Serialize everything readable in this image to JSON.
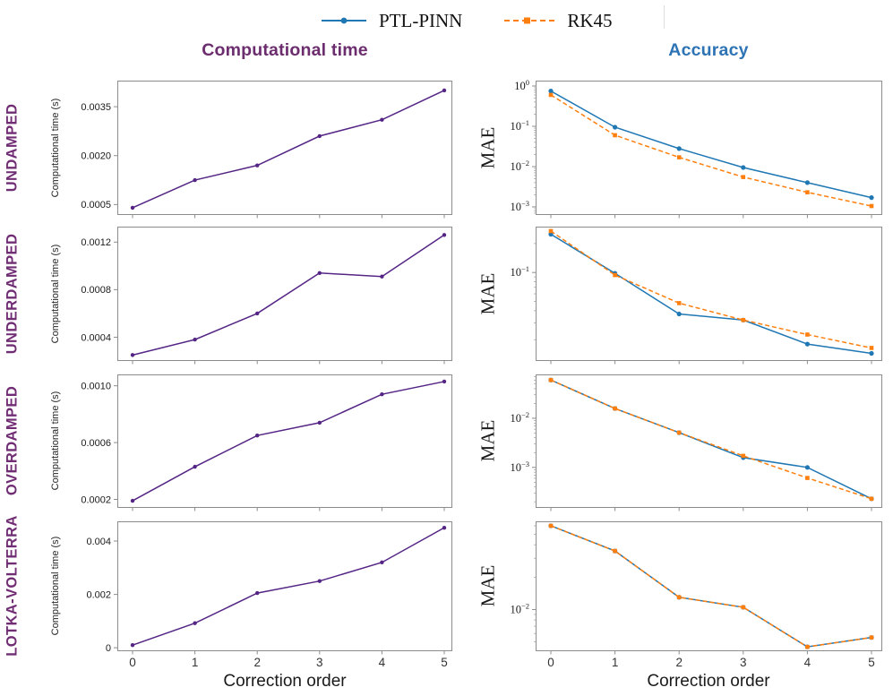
{
  "legend": {
    "items": [
      {
        "label": "PTL-PINN",
        "color": "#1f77b4",
        "dash": "solid",
        "marker": "circle"
      },
      {
        "label": "RK45",
        "color": "#ff7f0e",
        "dash": "dashed",
        "marker": "square"
      }
    ]
  },
  "columns": [
    {
      "title": "Computational time",
      "color": "#6b2d6e"
    },
    {
      "title": "Accuracy",
      "color": "#2e74b5"
    }
  ],
  "rows": [
    "UNDAMPED",
    "UNDERDAMPED",
    "OVERDAMPED",
    "LOTKA-VOLTERRA"
  ],
  "x_axis": {
    "label": "Correction order",
    "ticks": [
      "0",
      "1",
      "2",
      "3",
      "4",
      "5"
    ]
  },
  "colors": {
    "time_line": "#542585",
    "ptl_pinn": "#1f77b4",
    "rk45": "#ff7f0e",
    "row_label": "#702d73",
    "spine": "#8c8c8c",
    "tick_label": "#1a1a1a"
  },
  "chart_data": [
    {
      "id": "undamped-time",
      "row": "UNDAMPED",
      "column": "Computational time",
      "type": "line",
      "yscale": "linear",
      "ylabel": "Computational time (s)",
      "ylim": [
        0.00018,
        0.0043
      ],
      "x": [
        0,
        1,
        2,
        3,
        4,
        5
      ],
      "yticks": [
        {
          "v": 0.0005,
          "label": "0.0005"
        },
        {
          "v": 0.002,
          "label": "0.0020"
        },
        {
          "v": 0.0035,
          "label": "0.0035"
        }
      ],
      "series": [
        {
          "name": "time",
          "color": "#542585",
          "dash": "solid",
          "marker": "circle",
          "values": [
            0.0004,
            0.00125,
            0.0017,
            0.0026,
            0.0031,
            0.004
          ]
        }
      ]
    },
    {
      "id": "undamped-mae",
      "row": "UNDAMPED",
      "column": "Accuracy",
      "type": "line",
      "yscale": "log",
      "ylabel": "MAE",
      "ylim": [
        0.00063,
        1.36
      ],
      "x": [
        0,
        1,
        2,
        3,
        4,
        5
      ],
      "yticks": [
        {
          "v": 1,
          "exp": "0"
        },
        {
          "v": 0.1,
          "exp": "−1"
        },
        {
          "v": 0.01,
          "exp": "−2"
        },
        {
          "v": 0.001,
          "exp": "−3"
        }
      ],
      "series": [
        {
          "name": "PTL-PINN",
          "color": "#1f77b4",
          "dash": "solid",
          "marker": "circle",
          "values": [
            0.75,
            0.095,
            0.028,
            0.0095,
            0.004,
            0.0017
          ]
        },
        {
          "name": "RK45",
          "color": "#ff7f0e",
          "dash": "dashed",
          "marker": "square",
          "values": [
            0.6,
            0.06,
            0.017,
            0.0055,
            0.0023,
            0.00105
          ]
        }
      ]
    },
    {
      "id": "underdamped-time",
      "row": "UNDERDAMPED",
      "column": "Computational time",
      "type": "line",
      "yscale": "linear",
      "ylabel": "Computational time (s)",
      "ylim": [
        0.0002,
        0.00133
      ],
      "x": [
        0,
        1,
        2,
        3,
        4,
        5
      ],
      "yticks": [
        {
          "v": 0.0004,
          "label": "0.0004"
        },
        {
          "v": 0.0008,
          "label": "0.0008"
        },
        {
          "v": 0.0012,
          "label": "0.0012"
        }
      ],
      "series": [
        {
          "name": "time",
          "color": "#542585",
          "dash": "solid",
          "marker": "circle",
          "values": [
            0.00025,
            0.00038,
            0.0006,
            0.00094,
            0.00091,
            0.00126
          ]
        }
      ]
    },
    {
      "id": "underdamped-mae",
      "row": "UNDERDAMPED",
      "column": "Accuracy",
      "type": "line",
      "yscale": "log",
      "ylabel": "MAE",
      "ylim": [
        0.012,
        0.3
      ],
      "x": [
        0,
        1,
        2,
        3,
        4,
        5
      ],
      "yticks": [
        {
          "v": 0.1,
          "exp": "−1"
        }
      ],
      "series": [
        {
          "name": "PTL-PINN",
          "color": "#1f77b4",
          "dash": "solid",
          "marker": "circle",
          "values": [
            0.25,
            0.098,
            0.037,
            0.032,
            0.018,
            0.0144
          ]
        },
        {
          "name": "RK45",
          "color": "#ff7f0e",
          "dash": "dashed",
          "marker": "square",
          "values": [
            0.27,
            0.094,
            0.048,
            0.032,
            0.0226,
            0.0164
          ]
        }
      ]
    },
    {
      "id": "overdamped-time",
      "row": "OVERDAMPED",
      "column": "Computational time",
      "type": "line",
      "yscale": "linear",
      "ylabel": "Computational time (s)",
      "ylim": [
        0.00014,
        0.00108
      ],
      "x": [
        0,
        1,
        2,
        3,
        4,
        5
      ],
      "yticks": [
        {
          "v": 0.0002,
          "label": "0.0002"
        },
        {
          "v": 0.0006,
          "label": "0.0006"
        },
        {
          "v": 0.001,
          "label": "0.0010"
        }
      ],
      "series": [
        {
          "name": "time",
          "color": "#542585",
          "dash": "solid",
          "marker": "circle",
          "values": [
            0.00019,
            0.00043,
            0.00065,
            0.00074,
            0.00094,
            0.00103
          ]
        }
      ]
    },
    {
      "id": "overdamped-mae",
      "row": "OVERDAMPED",
      "column": "Accuracy",
      "type": "line",
      "yscale": "log",
      "ylabel": "MAE",
      "ylim": [
        0.00015,
        0.078
      ],
      "x": [
        0,
        1,
        2,
        3,
        4,
        5
      ],
      "yticks": [
        {
          "v": 0.01,
          "exp": "−2"
        },
        {
          "v": 0.001,
          "exp": "−3"
        }
      ],
      "series": [
        {
          "name": "PTL-PINN",
          "color": "#1f77b4",
          "dash": "solid",
          "marker": "circle",
          "values": [
            0.06,
            0.0158,
            0.0051,
            0.00158,
            0.001,
            0.00023
          ]
        },
        {
          "name": "RK45",
          "color": "#ff7f0e",
          "dash": "dashed",
          "marker": "square",
          "values": [
            0.06,
            0.0158,
            0.0051,
            0.00172,
            0.00061,
            0.00023
          ]
        }
      ]
    },
    {
      "id": "lotka-volterra-time",
      "row": "LOTKA-VOLTERRA",
      "column": "Computational time",
      "type": "line",
      "yscale": "linear",
      "ylabel": "Computational time (s)",
      "ylim": [
        -0.00013,
        0.00474
      ],
      "x": [
        0,
        1,
        2,
        3,
        4,
        5
      ],
      "yticks": [
        {
          "v": 0,
          "label": "0"
        },
        {
          "v": 0.002,
          "label": "0.002"
        },
        {
          "v": 0.004,
          "label": "0.004"
        }
      ],
      "series": [
        {
          "name": "time",
          "color": "#542585",
          "dash": "solid",
          "marker": "circle",
          "values": [
            0.0001,
            0.00092,
            0.00205,
            0.0025,
            0.0032,
            0.0045
          ]
        }
      ]
    },
    {
      "id": "lotka-volterra-mae",
      "row": "LOTKA-VOLTERRA",
      "column": "Accuracy",
      "type": "line",
      "yscale": "log",
      "ylabel": "MAE",
      "ylim": [
        0.0041,
        0.066
      ],
      "x": [
        0,
        1,
        2,
        3,
        4,
        5
      ],
      "yticks": [
        {
          "v": 0.01,
          "exp": "−2"
        }
      ],
      "series": [
        {
          "name": "PTL-PINN",
          "color": "#1f77b4",
          "dash": "solid",
          "marker": "circle",
          "values": [
            0.06,
            0.035,
            0.013,
            0.0105,
            0.0045,
            0.0055
          ]
        },
        {
          "name": "RK45",
          "color": "#ff7f0e",
          "dash": "dashed",
          "marker": "square",
          "values": [
            0.06,
            0.035,
            0.013,
            0.0105,
            0.0045,
            0.0055
          ]
        }
      ]
    }
  ]
}
